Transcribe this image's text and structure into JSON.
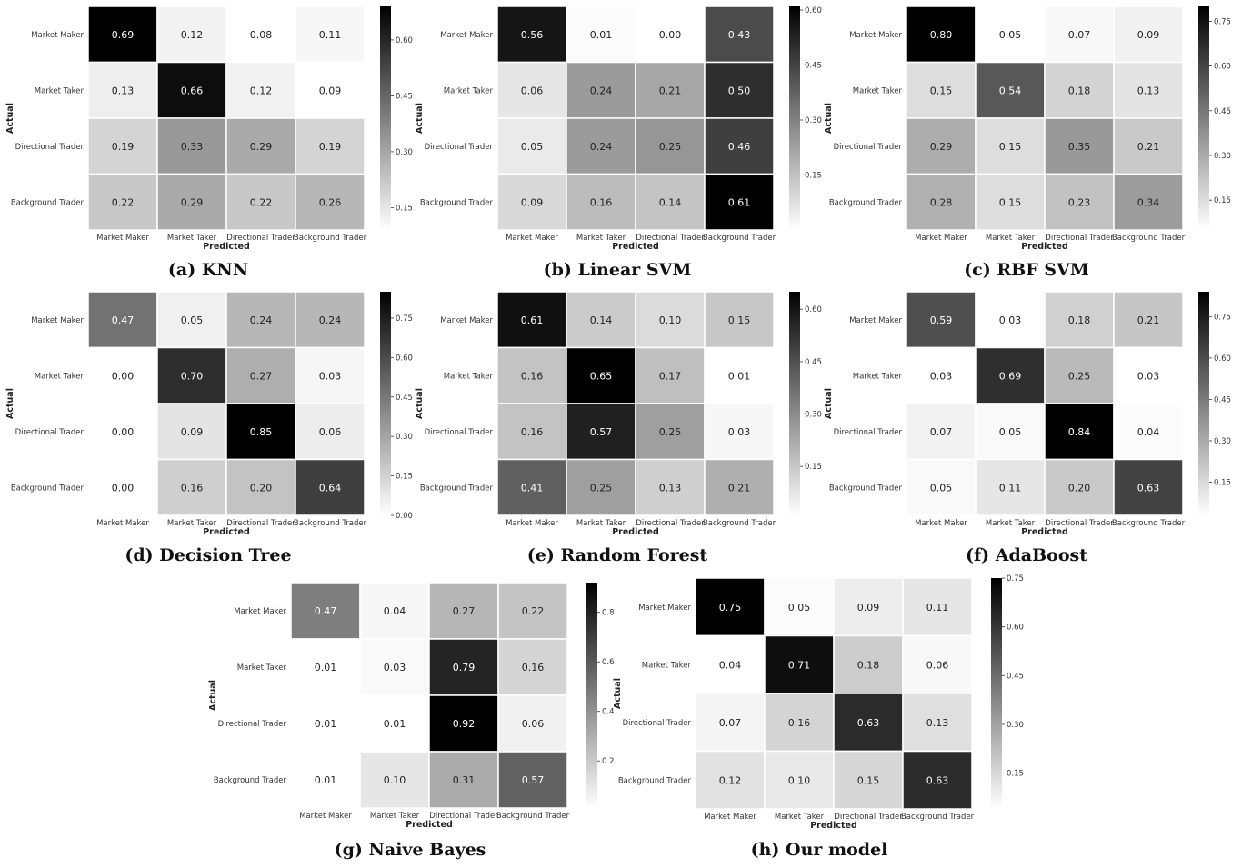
{
  "figure": {
    "row_labels": [
      "Market Maker",
      "Market Taker",
      "Directional Trader",
      "Background Trader"
    ],
    "col_labels": [
      "Market Maker",
      "Market Taker",
      "Directional Trader",
      "Background Trader"
    ],
    "ylabel": "Actual",
    "xlabel": "Predicted",
    "colormap": "white-to-black"
  },
  "chart_data": [
    {
      "type": "heatmap",
      "caption": "(a) KNN",
      "matrix": [
        [
          0.69,
          0.12,
          0.08,
          0.11
        ],
        [
          0.13,
          0.66,
          0.12,
          0.09
        ],
        [
          0.19,
          0.33,
          0.29,
          0.19
        ],
        [
          0.22,
          0.29,
          0.22,
          0.26
        ]
      ],
      "colorbar": {
        "range": [
          0.09,
          0.69
        ],
        "ticks": [
          "0.15",
          "0.30",
          "0.45",
          "0.60"
        ]
      }
    },
    {
      "type": "heatmap",
      "caption": "(b) Linear SVM",
      "matrix": [
        [
          0.56,
          0.01,
          0.0,
          0.43
        ],
        [
          0.06,
          0.24,
          0.21,
          0.5
        ],
        [
          0.05,
          0.24,
          0.25,
          0.46
        ],
        [
          0.09,
          0.16,
          0.14,
          0.61
        ]
      ],
      "colorbar": {
        "range": [
          0.0,
          0.61
        ],
        "ticks": [
          "0.15",
          "0.30",
          "0.45",
          "0.60"
        ]
      }
    },
    {
      "type": "heatmap",
      "caption": "(c) RBF SVM",
      "matrix": [
        [
          0.8,
          0.05,
          0.07,
          0.09
        ],
        [
          0.15,
          0.54,
          0.18,
          0.13
        ],
        [
          0.29,
          0.15,
          0.35,
          0.21
        ],
        [
          0.28,
          0.15,
          0.23,
          0.34
        ]
      ],
      "colorbar": {
        "range": [
          0.05,
          0.8
        ],
        "ticks": [
          "0.15",
          "0.30",
          "0.45",
          "0.60",
          "0.75"
        ]
      }
    },
    {
      "type": "heatmap",
      "caption": "(d) Decision Tree",
      "matrix": [
        [
          0.47,
          0.05,
          0.24,
          0.24
        ],
        [
          0.0,
          0.7,
          0.27,
          0.03
        ],
        [
          0.0,
          0.09,
          0.85,
          0.06
        ],
        [
          0.0,
          0.16,
          0.2,
          0.64
        ]
      ],
      "colorbar": {
        "range": [
          0.0,
          0.85
        ],
        "ticks": [
          "0.00",
          "0.15",
          "0.30",
          "0.45",
          "0.60",
          "0.75"
        ]
      }
    },
    {
      "type": "heatmap",
      "caption": "(e) Random Forest",
      "matrix": [
        [
          0.61,
          0.14,
          0.1,
          0.15
        ],
        [
          0.16,
          0.65,
          0.17,
          0.01
        ],
        [
          0.16,
          0.57,
          0.25,
          0.03
        ],
        [
          0.41,
          0.25,
          0.13,
          0.21
        ]
      ],
      "colorbar": {
        "range": [
          0.01,
          0.65
        ],
        "ticks": [
          "0.15",
          "0.30",
          "0.45",
          "0.60"
        ]
      }
    },
    {
      "type": "heatmap",
      "caption": "(f) AdaBoost",
      "matrix": [
        [
          0.59,
          0.03,
          0.18,
          0.21
        ],
        [
          0.03,
          0.69,
          0.25,
          0.03
        ],
        [
          0.07,
          0.05,
          0.84,
          0.04
        ],
        [
          0.05,
          0.11,
          0.2,
          0.63
        ]
      ],
      "colorbar": {
        "range": [
          0.03,
          0.84
        ],
        "ticks": [
          "0.15",
          "0.30",
          "0.45",
          "0.60",
          "0.75"
        ]
      }
    },
    {
      "type": "heatmap",
      "caption": "(g) Naive Bayes",
      "matrix": [
        [
          0.47,
          0.04,
          0.27,
          0.22
        ],
        [
          0.01,
          0.03,
          0.79,
          0.16
        ],
        [
          0.01,
          0.01,
          0.92,
          0.06
        ],
        [
          0.01,
          0.1,
          0.31,
          0.57
        ]
      ],
      "colorbar": {
        "range": [
          0.01,
          0.92
        ],
        "ticks": [
          "0.2",
          "0.4",
          "0.6",
          "0.8"
        ]
      }
    },
    {
      "type": "heatmap",
      "caption": "(h) Our model",
      "matrix": [
        [
          0.75,
          0.05,
          0.09,
          0.11
        ],
        [
          0.04,
          0.71,
          0.18,
          0.06
        ],
        [
          0.07,
          0.16,
          0.63,
          0.13
        ],
        [
          0.12,
          0.1,
          0.15,
          0.63
        ]
      ],
      "colorbar": {
        "range": [
          0.04,
          0.75
        ],
        "ticks": [
          "0.15",
          "0.30",
          "0.45",
          "0.60",
          "0.75"
        ]
      }
    }
  ]
}
